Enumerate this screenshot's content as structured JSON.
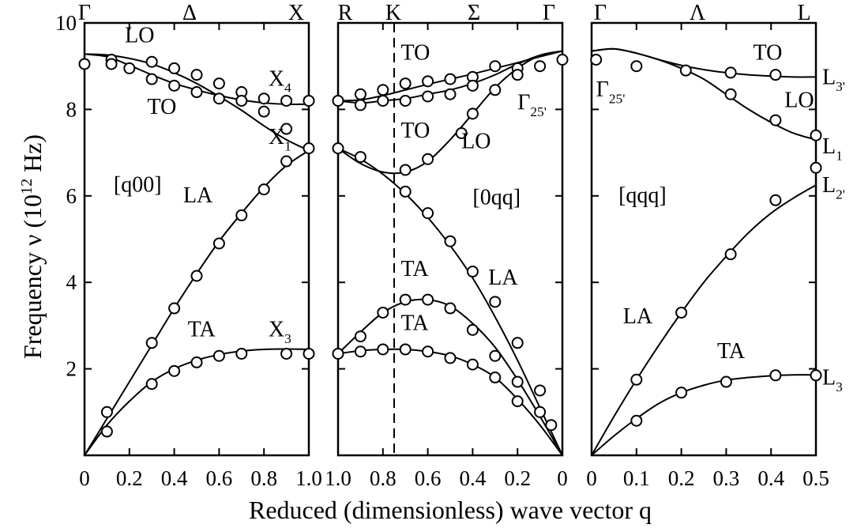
{
  "figure": {
    "ylabel_main": "Frequency ν (10",
    "ylabel_exp": "12",
    "ylabel_unit": " Hz)",
    "xlabel": "Reduced (dimensionless) wave vector q"
  },
  "chart_data": [
    {
      "type": "line",
      "panel": "[q00]",
      "title": "",
      "top_labels": [
        "Γ",
        "Δ",
        "X"
      ],
      "x_ticks": [
        "0",
        "0.2",
        "0.4",
        "0.6",
        "0.8",
        "1.0"
      ],
      "y_ticks": [
        "2",
        "4",
        "6",
        "8",
        "10"
      ],
      "xlim": [
        0,
        1.0
      ],
      "ylim": [
        0,
        10
      ],
      "series": [
        {
          "name": "LO",
          "x": [
            0,
            0.1,
            0.2,
            0.3,
            0.4,
            0.5,
            0.6,
            0.7,
            0.8,
            0.9,
            1.0
          ],
          "y": [
            9.28,
            9.26,
            9.18,
            9.05,
            8.85,
            8.6,
            8.3,
            7.98,
            7.62,
            7.3,
            7.05
          ]
        },
        {
          "name": "TO",
          "x": [
            0,
            0.1,
            0.2,
            0.3,
            0.4,
            0.5,
            0.6,
            0.7,
            0.8,
            0.9,
            1.0
          ],
          "y": [
            9.28,
            9.22,
            9.02,
            8.8,
            8.6,
            8.45,
            8.32,
            8.22,
            8.15,
            8.12,
            8.12
          ]
        },
        {
          "name": "LA",
          "x": [
            0,
            0.1,
            0.2,
            0.3,
            0.4,
            0.5,
            0.6,
            0.7,
            0.8,
            0.9,
            1.0
          ],
          "y": [
            0,
            0.85,
            1.7,
            2.55,
            3.4,
            4.2,
            4.95,
            5.6,
            6.2,
            6.7,
            7.05
          ]
        },
        {
          "name": "TA",
          "x": [
            0,
            0.1,
            0.2,
            0.3,
            0.4,
            0.5,
            0.6,
            0.7,
            0.8,
            0.9,
            1.0
          ],
          "y": [
            0,
            0.7,
            1.25,
            1.7,
            2.0,
            2.2,
            2.33,
            2.41,
            2.45,
            2.46,
            2.45
          ]
        }
      ],
      "points": [
        {
          "x": 0.0,
          "y": 9.05
        },
        {
          "x": 0.12,
          "y": 9.15
        },
        {
          "x": 0.12,
          "y": 9.05
        },
        {
          "x": 0.2,
          "y": 8.95
        },
        {
          "x": 0.3,
          "y": 9.1
        },
        {
          "x": 0.3,
          "y": 8.7
        },
        {
          "x": 0.4,
          "y": 8.95
        },
        {
          "x": 0.4,
          "y": 8.55
        },
        {
          "x": 0.5,
          "y": 8.8
        },
        {
          "x": 0.5,
          "y": 8.4
        },
        {
          "x": 0.6,
          "y": 8.6
        },
        {
          "x": 0.6,
          "y": 8.25
        },
        {
          "x": 0.7,
          "y": 8.4
        },
        {
          "x": 0.7,
          "y": 8.2
        },
        {
          "x": 0.8,
          "y": 8.25
        },
        {
          "x": 0.8,
          "y": 7.95
        },
        {
          "x": 0.9,
          "y": 8.2
        },
        {
          "x": 0.9,
          "y": 7.55
        },
        {
          "x": 0.9,
          "y": 6.8
        },
        {
          "x": 1.0,
          "y": 8.2
        },
        {
          "x": 1.0,
          "y": 7.1
        },
        {
          "x": 0.1,
          "y": 1.0
        },
        {
          "x": 0.1,
          "y": 0.55
        },
        {
          "x": 0.3,
          "y": 2.6
        },
        {
          "x": 0.4,
          "y": 3.4
        },
        {
          "x": 0.5,
          "y": 4.15
        },
        {
          "x": 0.6,
          "y": 4.9
        },
        {
          "x": 0.7,
          "y": 5.55
        },
        {
          "x": 0.8,
          "y": 6.15
        },
        {
          "x": 0.3,
          "y": 1.65
        },
        {
          "x": 0.4,
          "y": 1.95
        },
        {
          "x": 0.5,
          "y": 2.15
        },
        {
          "x": 0.6,
          "y": 2.3
        },
        {
          "x": 0.7,
          "y": 2.35
        },
        {
          "x": 0.9,
          "y": 2.35
        },
        {
          "x": 1.0,
          "y": 2.35
        }
      ],
      "annotations": [
        {
          "text": "LO",
          "x": 0.18,
          "y": 9.55
        },
        {
          "text": "TO",
          "x": 0.28,
          "y": 7.9
        },
        {
          "text": "X",
          "sub": "4",
          "x": 0.82,
          "y": 8.55
        },
        {
          "text": "X",
          "sub": "1",
          "x": 0.82,
          "y": 7.2
        },
        {
          "text": "[q00]",
          "x": 0.13,
          "y": 6.1
        },
        {
          "text": "LA",
          "x": 0.44,
          "y": 5.85
        },
        {
          "text": "TA",
          "x": 0.46,
          "y": 2.75
        },
        {
          "text": "X",
          "sub": "3",
          "x": 0.82,
          "y": 2.75
        }
      ]
    },
    {
      "type": "line",
      "panel": "[0qq]",
      "title": "",
      "top_labels": [
        "R",
        "K",
        "Σ",
        "Γ"
      ],
      "x_ticks": [
        "1.0",
        "0.8",
        "0.6",
        "0.4",
        "0.2",
        "0"
      ],
      "xlim": [
        1.0,
        0
      ],
      "ylim": [
        0,
        10
      ],
      "dashed_x": 0.75,
      "series": [
        {
          "name": "TO",
          "x": [
            1.0,
            0.9,
            0.8,
            0.7,
            0.6,
            0.5,
            0.4,
            0.3,
            0.2,
            0.1,
            0
          ],
          "y": [
            8.2,
            8.22,
            8.32,
            8.45,
            8.58,
            8.7,
            8.82,
            8.95,
            9.08,
            9.22,
            9.35
          ]
        },
        {
          "name": "TO",
          "x": [
            1.0,
            0.9,
            0.8,
            0.7,
            0.6,
            0.5,
            0.4,
            0.3,
            0.2,
            0.1,
            0
          ],
          "y": [
            8.2,
            8.15,
            8.2,
            8.25,
            8.35,
            8.45,
            8.6,
            8.8,
            9.05,
            9.25,
            9.35
          ]
        },
        {
          "name": "LO",
          "x": [
            1.0,
            0.9,
            0.8,
            0.7,
            0.6,
            0.5,
            0.4,
            0.3,
            0.2,
            0.1,
            0
          ],
          "y": [
            7.1,
            6.75,
            6.55,
            6.55,
            6.8,
            7.3,
            7.9,
            8.5,
            8.95,
            9.25,
            9.35
          ]
        },
        {
          "name": "LA",
          "x": [
            1.0,
            0.9,
            0.8,
            0.7,
            0.6,
            0.5,
            0.4,
            0.3,
            0.2,
            0.1,
            0
          ],
          "y": [
            7.1,
            6.85,
            6.5,
            6.05,
            5.5,
            4.85,
            4.1,
            3.2,
            2.2,
            1.1,
            0
          ]
        },
        {
          "name": "TA",
          "x": [
            1.0,
            0.9,
            0.8,
            0.7,
            0.6,
            0.5,
            0.4,
            0.3,
            0.2,
            0.1,
            0
          ],
          "y": [
            2.35,
            2.85,
            3.3,
            3.55,
            3.6,
            3.45,
            3.05,
            2.5,
            1.75,
            0.9,
            0
          ]
        },
        {
          "name": "TA",
          "x": [
            1.0,
            0.9,
            0.8,
            0.7,
            0.6,
            0.5,
            0.4,
            0.3,
            0.2,
            0.1,
            0
          ],
          "y": [
            2.35,
            2.42,
            2.45,
            2.45,
            2.4,
            2.3,
            2.1,
            1.8,
            1.3,
            0.7,
            0
          ]
        }
      ],
      "points": [
        {
          "x": 1.0,
          "y": 8.2
        },
        {
          "x": 0.9,
          "y": 8.35
        },
        {
          "x": 0.9,
          "y": 8.1
        },
        {
          "x": 0.8,
          "y": 8.45
        },
        {
          "x": 0.8,
          "y": 8.2
        },
        {
          "x": 0.7,
          "y": 8.6
        },
        {
          "x": 0.7,
          "y": 8.2
        },
        {
          "x": 0.6,
          "y": 8.65
        },
        {
          "x": 0.6,
          "y": 8.3
        },
        {
          "x": 0.5,
          "y": 8.7
        },
        {
          "x": 0.5,
          "y": 8.35
        },
        {
          "x": 0.4,
          "y": 8.75
        },
        {
          "x": 0.4,
          "y": 8.55
        },
        {
          "x": 0.3,
          "y": 9.0
        },
        {
          "x": 0.3,
          "y": 8.45
        },
        {
          "x": 0.2,
          "y": 8.95
        },
        {
          "x": 0.2,
          "y": 8.8
        },
        {
          "x": 0.1,
          "y": 9.0
        },
        {
          "x": 0,
          "y": 9.15
        },
        {
          "x": 1.0,
          "y": 7.1
        },
        {
          "x": 0.9,
          "y": 6.9
        },
        {
          "x": 0.7,
          "y": 6.6
        },
        {
          "x": 0.6,
          "y": 6.85
        },
        {
          "x": 0.45,
          "y": 7.45
        },
        {
          "x": 0.4,
          "y": 7.9
        },
        {
          "x": 0.7,
          "y": 6.1
        },
        {
          "x": 0.6,
          "y": 5.6
        },
        {
          "x": 0.5,
          "y": 4.95
        },
        {
          "x": 0.4,
          "y": 4.25
        },
        {
          "x": 0.3,
          "y": 3.55
        },
        {
          "x": 0.2,
          "y": 2.6
        },
        {
          "x": 0.1,
          "y": 1.5
        },
        {
          "x": 0.05,
          "y": 0.7
        },
        {
          "x": 0.9,
          "y": 2.75
        },
        {
          "x": 0.8,
          "y": 3.3
        },
        {
          "x": 0.7,
          "y": 3.6
        },
        {
          "x": 0.6,
          "y": 3.6
        },
        {
          "x": 0.5,
          "y": 3.4
        },
        {
          "x": 0.4,
          "y": 2.9
        },
        {
          "x": 0.3,
          "y": 2.3
        },
        {
          "x": 0.2,
          "y": 1.7
        },
        {
          "x": 1.0,
          "y": 2.35
        },
        {
          "x": 0.9,
          "y": 2.4
        },
        {
          "x": 0.8,
          "y": 2.45
        },
        {
          "x": 0.7,
          "y": 2.45
        },
        {
          "x": 0.6,
          "y": 2.4
        },
        {
          "x": 0.5,
          "y": 2.25
        },
        {
          "x": 0.4,
          "y": 2.1
        },
        {
          "x": 0.3,
          "y": 1.8
        },
        {
          "x": 0.2,
          "y": 1.25
        },
        {
          "x": 0.1,
          "y": 1.0
        }
      ],
      "annotations": [
        {
          "text": "TO",
          "x": 0.72,
          "y": 9.15
        },
        {
          "text": "Γ",
          "sub": "25'",
          "x": 0.2,
          "y": 8.0
        },
        {
          "text": "TO",
          "x": 0.72,
          "y": 7.35
        },
        {
          "text": "LO",
          "x": 0.45,
          "y": 7.1
        },
        {
          "text": "[0qq]",
          "x": 0.4,
          "y": 5.8
        },
        {
          "text": "LA",
          "x": 0.33,
          "y": 3.95
        },
        {
          "text": "TA",
          "x": 0.72,
          "y": 4.15
        },
        {
          "text": "TA",
          "x": 0.72,
          "y": 2.9
        }
      ]
    },
    {
      "type": "line",
      "panel": "[qqq]",
      "title": "",
      "top_labels": [
        "Γ",
        "Λ",
        "L"
      ],
      "x_ticks": [
        "0",
        "0.1",
        "0.2",
        "0.3",
        "0.4",
        "0.5"
      ],
      "xlim": [
        0,
        0.5
      ],
      "ylim": [
        0,
        10
      ],
      "series": [
        {
          "name": "TO",
          "x": [
            0,
            0.05,
            0.1,
            0.15,
            0.2,
            0.25,
            0.3,
            0.35,
            0.4,
            0.45,
            0.5
          ],
          "y": [
            9.35,
            9.4,
            9.3,
            9.15,
            9.02,
            8.92,
            8.85,
            8.8,
            8.77,
            8.75,
            8.75
          ]
        },
        {
          "name": "LO",
          "x": [
            0,
            0.05,
            0.1,
            0.15,
            0.2,
            0.25,
            0.3,
            0.35,
            0.4,
            0.45,
            0.5
          ],
          "y": [
            9.35,
            9.4,
            9.3,
            9.15,
            8.95,
            8.7,
            8.35,
            8.0,
            7.7,
            7.45,
            7.3
          ]
        },
        {
          "name": "LA",
          "x": [
            0,
            0.05,
            0.1,
            0.15,
            0.2,
            0.25,
            0.3,
            0.35,
            0.4,
            0.45,
            0.5
          ],
          "y": [
            0,
            0.9,
            1.75,
            2.55,
            3.3,
            4.0,
            4.6,
            5.15,
            5.6,
            5.95,
            6.25
          ]
        },
        {
          "name": "TA",
          "x": [
            0,
            0.05,
            0.1,
            0.15,
            0.2,
            0.25,
            0.3,
            0.35,
            0.4,
            0.45,
            0.5
          ],
          "y": [
            0,
            0.45,
            0.85,
            1.2,
            1.45,
            1.62,
            1.74,
            1.8,
            1.84,
            1.86,
            1.86
          ]
        }
      ],
      "points": [
        {
          "x": 0.01,
          "y": 9.15
        },
        {
          "x": 0.1,
          "y": 9.0
        },
        {
          "x": 0.21,
          "y": 8.9
        },
        {
          "x": 0.31,
          "y": 8.85
        },
        {
          "x": 0.41,
          "y": 8.8
        },
        {
          "x": 0.31,
          "y": 8.35
        },
        {
          "x": 0.41,
          "y": 7.75
        },
        {
          "x": 0.5,
          "y": 7.4
        },
        {
          "x": 0.5,
          "y": 6.65
        },
        {
          "x": 0.41,
          "y": 5.9
        },
        {
          "x": 0.31,
          "y": 4.65
        },
        {
          "x": 0.2,
          "y": 3.3
        },
        {
          "x": 0.1,
          "y": 1.75
        },
        {
          "x": 0.1,
          "y": 0.8
        },
        {
          "x": 0.2,
          "y": 1.45
        },
        {
          "x": 0.3,
          "y": 1.7
        },
        {
          "x": 0.41,
          "y": 1.85
        },
        {
          "x": 0.5,
          "y": 1.85
        }
      ],
      "annotations": [
        {
          "text": "Γ",
          "sub": "25'",
          "x": 0.01,
          "y": 8.3
        },
        {
          "text": "TO",
          "x": 0.36,
          "y": 9.15
        },
        {
          "text": "LO",
          "x": 0.43,
          "y": 8.05
        },
        {
          "text": "[qqq]",
          "x": 0.06,
          "y": 5.85
        },
        {
          "text": "LA",
          "x": 0.07,
          "y": 3.05
        },
        {
          "text": "TA",
          "x": 0.28,
          "y": 2.25
        }
      ],
      "right_labels": [
        {
          "text": "L",
          "sub": "3'",
          "y": 8.75
        },
        {
          "text": "L",
          "sub": "1",
          "y": 7.15
        },
        {
          "text": "L",
          "sub": "2'",
          "y": 6.25
        },
        {
          "text": "L",
          "sub": "3",
          "y": 1.8
        }
      ]
    }
  ]
}
